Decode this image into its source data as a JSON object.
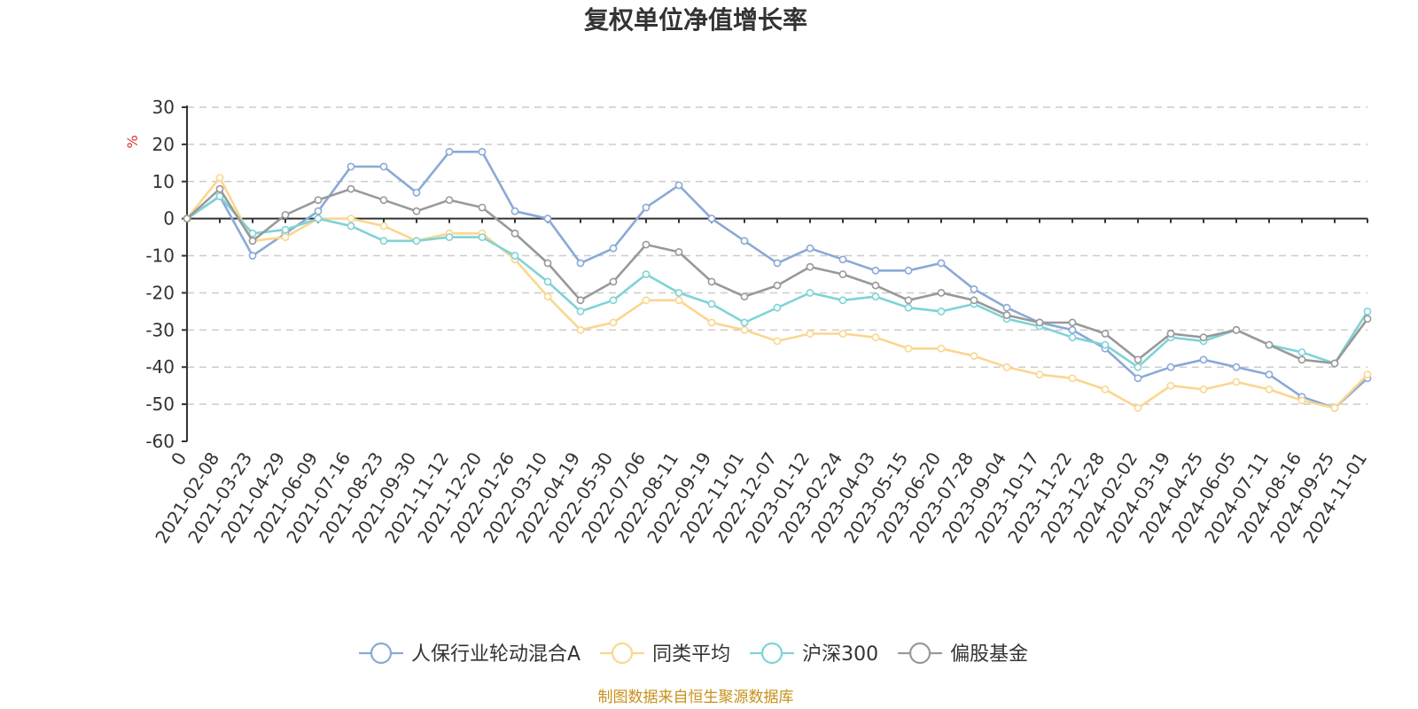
{
  "chart_data": {
    "type": "line",
    "title": "复权单位净值增长率",
    "ylabel": "%",
    "ylim": [
      -60,
      30
    ],
    "yticks": [
      30,
      20,
      10,
      0,
      -10,
      -20,
      -30,
      -40,
      -50,
      -60
    ],
    "categories": [
      "0",
      "2021-02-08",
      "2021-03-23",
      "2021-04-29",
      "2021-06-09",
      "2021-07-16",
      "2021-08-23",
      "2021-09-30",
      "2021-11-12",
      "2021-12-20",
      "2022-01-26",
      "2022-03-10",
      "2022-04-19",
      "2022-05-30",
      "2022-07-06",
      "2022-08-11",
      "2022-09-19",
      "2022-11-01",
      "2022-12-07",
      "2023-01-12",
      "2023-02-24",
      "2023-04-03",
      "2023-05-15",
      "2023-06-20",
      "2023-07-28",
      "2023-09-04",
      "2023-10-17",
      "2023-11-22",
      "2023-12-28",
      "2024-02-02",
      "2024-03-19",
      "2024-04-25",
      "2024-06-05",
      "2024-07-11",
      "2024-08-16",
      "2024-09-25",
      "2024-11-01"
    ],
    "series": [
      {
        "name": "人保行业轮动混合A",
        "color": "#8aa9d6",
        "values": [
          0,
          6,
          -10,
          -4,
          2,
          14,
          14,
          7,
          18,
          18,
          2,
          0,
          -12,
          -8,
          3,
          9,
          0,
          -6,
          -12,
          -8,
          -11,
          -14,
          -14,
          -12,
          -19,
          -24,
          -28,
          -30,
          -35,
          -43,
          -40,
          -38,
          -40,
          -42,
          -48,
          -51,
          -43
        ]
      },
      {
        "name": "同类平均",
        "color": "#fbd68f",
        "values": [
          0,
          11,
          -6,
          -5,
          0,
          0,
          -2,
          -6,
          -4,
          -4,
          -11,
          -21,
          -30,
          -28,
          -22,
          -22,
          -28,
          -30,
          -33,
          -31,
          -31,
          -32,
          -35,
          -35,
          -37,
          -40,
          -42,
          -43,
          -46,
          -51,
          -45,
          -46,
          -44,
          -46,
          -49,
          -51,
          -42
        ]
      },
      {
        "name": "沪深300",
        "color": "#7fd3d6",
        "values": [
          0,
          6,
          -4,
          -3,
          0,
          -2,
          -6,
          -6,
          -5,
          -5,
          -10,
          -17,
          -25,
          -22,
          -15,
          -20,
          -23,
          -28,
          -24,
          -20,
          -22,
          -21,
          -24,
          -25,
          -23,
          -27,
          -29,
          -32,
          -34,
          -40,
          -32,
          -33,
          -30,
          -34,
          -36,
          -39,
          -25
        ]
      },
      {
        "name": "偏股基金",
        "color": "#999999",
        "values": [
          0,
          8,
          -6,
          1,
          5,
          8,
          5,
          2,
          5,
          3,
          -4,
          -12,
          -22,
          -17,
          -7,
          -9,
          -17,
          -21,
          -18,
          -13,
          -15,
          -18,
          -22,
          -20,
          -22,
          -26,
          -28,
          -28,
          -31,
          -38,
          -31,
          -32,
          -30,
          -34,
          -38,
          -39,
          -27
        ]
      }
    ],
    "legend": "bottom-center",
    "grid": true
  },
  "source_note": "制图数据来自恒生聚源数据库"
}
